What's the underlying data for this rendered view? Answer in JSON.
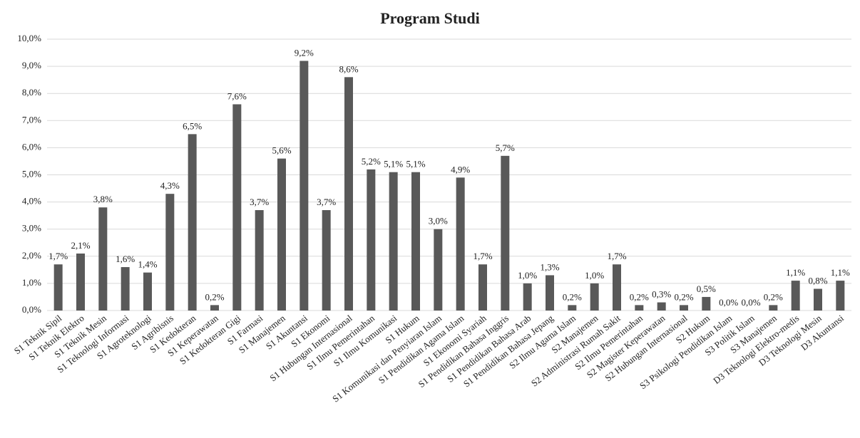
{
  "chart_data": {
    "type": "bar",
    "title": "Program Studi",
    "categories": [
      "S1 Teknik Sipil",
      "S1 Teknik Elektro",
      "S1 Teknik Mesin",
      "S1 Teknologi Informasi",
      "S1 Agroteknologi",
      "S1 Agribisnis",
      "S1 Kedokteran",
      "S1 Keperawatan",
      "S1 Kedokteran Gigi",
      "S1 Farmasi",
      "S1 Manajemen",
      "S1 Akuntansi",
      "S1 Ekonomi",
      "S1 Hubungan Internasional",
      "S1 Ilmu Pemerintahan",
      "S1 Ilmu Komunikasi",
      "S1 Hukum",
      "S1 Komunikasi dan Penyiaran Islam",
      "S1 Pendidikan Agama Islam",
      "S1 Ekonomi Syariah",
      "S1 Pendidikan Bahasa Inggris",
      "S1 Pendidikan Bahasa Arab",
      "S1 Pendidikan Bahasa Jepang",
      "S2 Ilmu Agama Islam",
      "S2 Manajemen",
      "S2 Administrasi Rumah Sakit",
      "S2 Ilmu Pemerintahan",
      "S2 Magister Keperawatan",
      "S2 Hubungan Internasional",
      "S2 Hukum",
      "S3 Psikologi Pendidikan Islam",
      "S3 Politik Islam",
      "S3 Manajemen",
      "D3 Teknologi Elektro-medis",
      "D3 Teknologi Mesin",
      "D3 Akuntansi"
    ],
    "values": [
      1.7,
      2.1,
      3.8,
      1.6,
      1.4,
      4.3,
      6.5,
      0.2,
      7.6,
      3.7,
      5.6,
      9.2,
      3.7,
      8.6,
      5.2,
      5.1,
      5.1,
      3.0,
      4.9,
      1.7,
      5.7,
      1.0,
      1.3,
      0.2,
      1.0,
      1.7,
      0.2,
      0.3,
      0.2,
      0.5,
      0.0,
      0.0,
      0.2,
      1.1,
      0.8,
      1.1
    ],
    "value_labels": [
      "1,7%",
      "2,1%",
      "3,8%",
      "1,6%",
      "1,4%",
      "4,3%",
      "6,5%",
      "0,2%",
      "7,6%",
      "3,7%",
      "5,6%",
      "9,2%",
      "3,7%",
      "8,6%",
      "5,2%",
      "5,1%",
      "5,1%",
      "3,0%",
      "4,9%",
      "1,7%",
      "5,7%",
      "1,0%",
      "1,3%",
      "0,2%",
      "1,0%",
      "1,7%",
      "0,2%",
      "0,3%",
      "0,2%",
      "0,5%",
      "0,0%",
      "0,0%",
      "0,2%",
      "1,1%",
      "0,8%",
      "1,1%"
    ],
    "color": "#595959",
    "ylim": [
      0,
      10
    ],
    "yticks": [
      {
        "value": 0,
        "label": "0,0%"
      },
      {
        "value": 1,
        "label": "1,0%"
      },
      {
        "value": 2,
        "label": "2,0%"
      },
      {
        "value": 3,
        "label": "3,0%"
      },
      {
        "value": 4,
        "label": "4,0%"
      },
      {
        "value": 5,
        "label": "5,0%"
      },
      {
        "value": 6,
        "label": "6,0%"
      },
      {
        "value": 7,
        "label": "7,0%"
      },
      {
        "value": 8,
        "label": "8,0%"
      },
      {
        "value": 9,
        "label": "9,0%"
      },
      {
        "value": 10,
        "label": "10,0%"
      }
    ],
    "grid": true
  }
}
